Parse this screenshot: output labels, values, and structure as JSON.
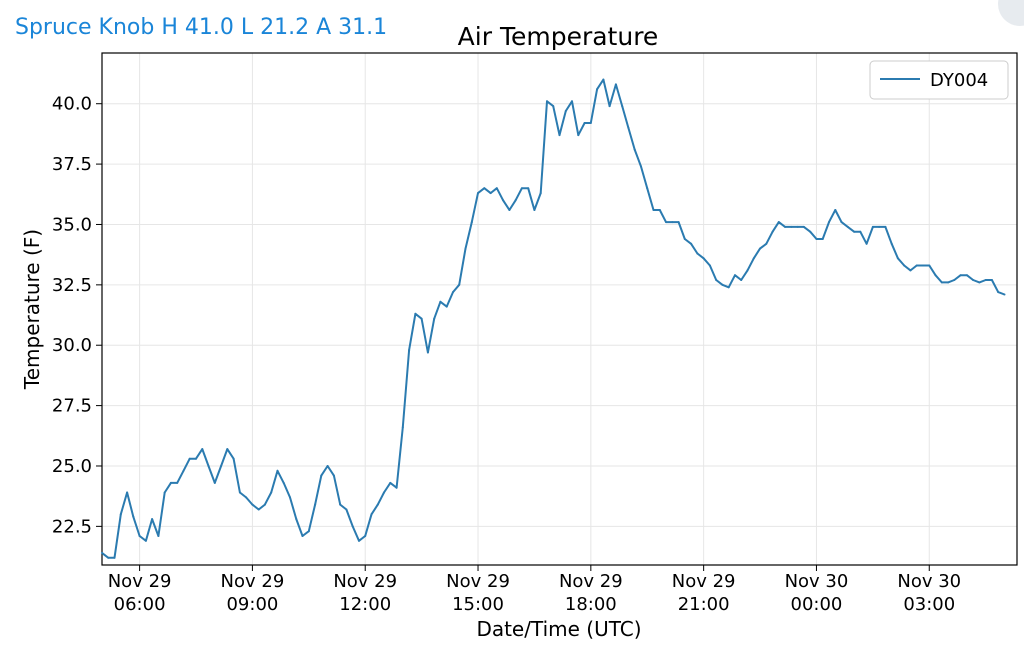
{
  "header": {
    "station_label": "Spruce Knob H 41.0 L 21.2 A 31.1"
  },
  "colors": {
    "header_text": "#1a85d8",
    "series_line": "#2b7bb0",
    "grid": "#e6e6e6"
  },
  "chart_data": {
    "type": "line",
    "title": "Air Temperature",
    "xlabel": "Date/Time (UTC)",
    "ylabel": "Temperature (F)",
    "ylim": [
      20.9,
      42.1
    ],
    "xlim": [
      "2020-11-29 05:00",
      "2020-11-30 05:20"
    ],
    "x_unit": "date/time (UTC)",
    "grid": true,
    "legend_position": "top-right",
    "y_ticks": [
      "22.5",
      "25.0",
      "27.5",
      "30.0",
      "32.5",
      "35.0",
      "37.5",
      "40.0"
    ],
    "y_tick_values": [
      22.5,
      25.0,
      27.5,
      30.0,
      32.5,
      35.0,
      37.5,
      40.0
    ],
    "x_ticks": [
      {
        "date": "Nov 29",
        "time": "06:00",
        "at": "2020-11-29 06:00"
      },
      {
        "date": "Nov 29",
        "time": "09:00",
        "at": "2020-11-29 09:00"
      },
      {
        "date": "Nov 29",
        "time": "12:00",
        "at": "2020-11-29 12:00"
      },
      {
        "date": "Nov 29",
        "time": "15:00",
        "at": "2020-11-29 15:00"
      },
      {
        "date": "Nov 29",
        "time": "18:00",
        "at": "2020-11-29 18:00"
      },
      {
        "date": "Nov 29",
        "time": "21:00",
        "at": "2020-11-29 21:00"
      },
      {
        "date": "Nov 30",
        "time": "00:00",
        "at": "2020-11-30 00:00"
      },
      {
        "date": "Nov 30",
        "time": "03:00",
        "at": "2020-11-30 03:00"
      }
    ],
    "series": [
      {
        "name": "DY004",
        "points": [
          [
            "2020-11-29 05:00",
            21.4
          ],
          [
            "2020-11-29 05:10",
            21.2
          ],
          [
            "2020-11-29 05:20",
            21.2
          ],
          [
            "2020-11-29 05:30",
            23.0
          ],
          [
            "2020-11-29 05:40",
            23.9
          ],
          [
            "2020-11-29 05:50",
            22.9
          ],
          [
            "2020-11-29 06:00",
            22.1
          ],
          [
            "2020-11-29 06:10",
            21.9
          ],
          [
            "2020-11-29 06:20",
            22.8
          ],
          [
            "2020-11-29 06:30",
            22.1
          ],
          [
            "2020-11-29 06:40",
            23.9
          ],
          [
            "2020-11-29 06:50",
            24.3
          ],
          [
            "2020-11-29 07:00",
            24.3
          ],
          [
            "2020-11-29 07:10",
            24.8
          ],
          [
            "2020-11-29 07:20",
            25.3
          ],
          [
            "2020-11-29 07:30",
            25.3
          ],
          [
            "2020-11-29 07:40",
            25.7
          ],
          [
            "2020-11-29 07:50",
            25.0
          ],
          [
            "2020-11-29 08:00",
            24.3
          ],
          [
            "2020-11-29 08:10",
            25.0
          ],
          [
            "2020-11-29 08:20",
            25.7
          ],
          [
            "2020-11-29 08:30",
            25.3
          ],
          [
            "2020-11-29 08:40",
            23.9
          ],
          [
            "2020-11-29 08:50",
            23.7
          ],
          [
            "2020-11-29 09:00",
            23.4
          ],
          [
            "2020-11-29 09:10",
            23.2
          ],
          [
            "2020-11-29 09:20",
            23.4
          ],
          [
            "2020-11-29 09:30",
            23.9
          ],
          [
            "2020-11-29 09:40",
            24.8
          ],
          [
            "2020-11-29 09:50",
            24.3
          ],
          [
            "2020-11-29 10:00",
            23.7
          ],
          [
            "2020-11-29 10:10",
            22.8
          ],
          [
            "2020-11-29 10:20",
            22.1
          ],
          [
            "2020-11-29 10:30",
            22.3
          ],
          [
            "2020-11-29 10:40",
            23.4
          ],
          [
            "2020-11-29 10:50",
            24.6
          ],
          [
            "2020-11-29 11:00",
            25.0
          ],
          [
            "2020-11-29 11:10",
            24.6
          ],
          [
            "2020-11-29 11:20",
            23.4
          ],
          [
            "2020-11-29 11:30",
            23.2
          ],
          [
            "2020-11-29 11:40",
            22.5
          ],
          [
            "2020-11-29 11:50",
            21.9
          ],
          [
            "2020-11-29 12:00",
            22.1
          ],
          [
            "2020-11-29 12:10",
            23.0
          ],
          [
            "2020-11-29 12:20",
            23.4
          ],
          [
            "2020-11-29 12:30",
            23.9
          ],
          [
            "2020-11-29 12:40",
            24.3
          ],
          [
            "2020-11-29 12:50",
            24.1
          ],
          [
            "2020-11-29 13:00",
            26.6
          ],
          [
            "2020-11-29 13:10",
            29.8
          ],
          [
            "2020-11-29 13:20",
            31.3
          ],
          [
            "2020-11-29 13:30",
            31.1
          ],
          [
            "2020-11-29 13:40",
            29.7
          ],
          [
            "2020-11-29 13:50",
            31.1
          ],
          [
            "2020-11-29 14:00",
            31.8
          ],
          [
            "2020-11-29 14:10",
            31.6
          ],
          [
            "2020-11-29 14:20",
            32.2
          ],
          [
            "2020-11-29 14:30",
            32.5
          ],
          [
            "2020-11-29 14:40",
            34.0
          ],
          [
            "2020-11-29 14:50",
            35.1
          ],
          [
            "2020-11-29 15:00",
            36.3
          ],
          [
            "2020-11-29 15:10",
            36.5
          ],
          [
            "2020-11-29 15:20",
            36.3
          ],
          [
            "2020-11-29 15:30",
            36.5
          ],
          [
            "2020-11-29 15:40",
            36.0
          ],
          [
            "2020-11-29 15:50",
            35.6
          ],
          [
            "2020-11-29 16:00",
            36.0
          ],
          [
            "2020-11-29 16:10",
            36.5
          ],
          [
            "2020-11-29 16:20",
            36.5
          ],
          [
            "2020-11-29 16:30",
            35.6
          ],
          [
            "2020-11-29 16:40",
            36.3
          ],
          [
            "2020-11-29 16:50",
            40.1
          ],
          [
            "2020-11-29 17:00",
            39.9
          ],
          [
            "2020-11-29 17:10",
            38.7
          ],
          [
            "2020-11-29 17:20",
            39.7
          ],
          [
            "2020-11-29 17:30",
            40.1
          ],
          [
            "2020-11-29 17:40",
            38.7
          ],
          [
            "2020-11-29 17:50",
            39.2
          ],
          [
            "2020-11-29 18:00",
            39.2
          ],
          [
            "2020-11-29 18:10",
            40.6
          ],
          [
            "2020-11-29 18:20",
            41.0
          ],
          [
            "2020-11-29 18:30",
            39.9
          ],
          [
            "2020-11-29 18:40",
            40.8
          ],
          [
            "2020-11-29 18:50",
            39.9
          ],
          [
            "2020-11-29 19:00",
            39.0
          ],
          [
            "2020-11-29 19:10",
            38.1
          ],
          [
            "2020-11-29 19:20",
            37.4
          ],
          [
            "2020-11-29 19:30",
            36.5
          ],
          [
            "2020-11-29 19:40",
            35.6
          ],
          [
            "2020-11-29 19:50",
            35.6
          ],
          [
            "2020-11-29 20:00",
            35.1
          ],
          [
            "2020-11-29 20:10",
            35.1
          ],
          [
            "2020-11-29 20:20",
            35.1
          ],
          [
            "2020-11-29 20:30",
            34.4
          ],
          [
            "2020-11-29 20:40",
            34.2
          ],
          [
            "2020-11-29 20:50",
            33.8
          ],
          [
            "2020-11-29 21:00",
            33.6
          ],
          [
            "2020-11-29 21:10",
            33.3
          ],
          [
            "2020-11-29 21:20",
            32.7
          ],
          [
            "2020-11-29 21:30",
            32.5
          ],
          [
            "2020-11-29 21:40",
            32.4
          ],
          [
            "2020-11-29 21:50",
            32.9
          ],
          [
            "2020-11-29 22:00",
            32.7
          ],
          [
            "2020-11-29 22:10",
            33.1
          ],
          [
            "2020-11-29 22:20",
            33.6
          ],
          [
            "2020-11-29 22:30",
            34.0
          ],
          [
            "2020-11-29 22:40",
            34.2
          ],
          [
            "2020-11-29 22:50",
            34.7
          ],
          [
            "2020-11-29 23:00",
            35.1
          ],
          [
            "2020-11-29 23:10",
            34.9
          ],
          [
            "2020-11-29 23:20",
            34.9
          ],
          [
            "2020-11-29 23:30",
            34.9
          ],
          [
            "2020-11-29 23:40",
            34.9
          ],
          [
            "2020-11-29 23:50",
            34.7
          ],
          [
            "2020-11-30 00:00",
            34.4
          ],
          [
            "2020-11-30 00:10",
            34.4
          ],
          [
            "2020-11-30 00:20",
            35.1
          ],
          [
            "2020-11-30 00:30",
            35.6
          ],
          [
            "2020-11-30 00:40",
            35.1
          ],
          [
            "2020-11-30 00:50",
            34.9
          ],
          [
            "2020-11-30 01:00",
            34.7
          ],
          [
            "2020-11-30 01:10",
            34.7
          ],
          [
            "2020-11-30 01:20",
            34.2
          ],
          [
            "2020-11-30 01:30",
            34.9
          ],
          [
            "2020-11-30 01:40",
            34.9
          ],
          [
            "2020-11-30 01:50",
            34.9
          ],
          [
            "2020-11-30 02:00",
            34.2
          ],
          [
            "2020-11-30 02:10",
            33.6
          ],
          [
            "2020-11-30 02:20",
            33.3
          ],
          [
            "2020-11-30 02:30",
            33.1
          ],
          [
            "2020-11-30 02:40",
            33.3
          ],
          [
            "2020-11-30 02:50",
            33.3
          ],
          [
            "2020-11-30 03:00",
            33.3
          ],
          [
            "2020-11-30 03:10",
            32.9
          ],
          [
            "2020-11-30 03:20",
            32.6
          ],
          [
            "2020-11-30 03:30",
            32.6
          ],
          [
            "2020-11-30 03:40",
            32.7
          ],
          [
            "2020-11-30 03:50",
            32.9
          ],
          [
            "2020-11-30 04:00",
            32.9
          ],
          [
            "2020-11-30 04:10",
            32.7
          ],
          [
            "2020-11-30 04:20",
            32.6
          ],
          [
            "2020-11-30 04:30",
            32.7
          ],
          [
            "2020-11-30 04:40",
            32.7
          ],
          [
            "2020-11-30 04:50",
            32.2
          ],
          [
            "2020-11-30 05:00",
            32.1
          ]
        ]
      }
    ]
  }
}
